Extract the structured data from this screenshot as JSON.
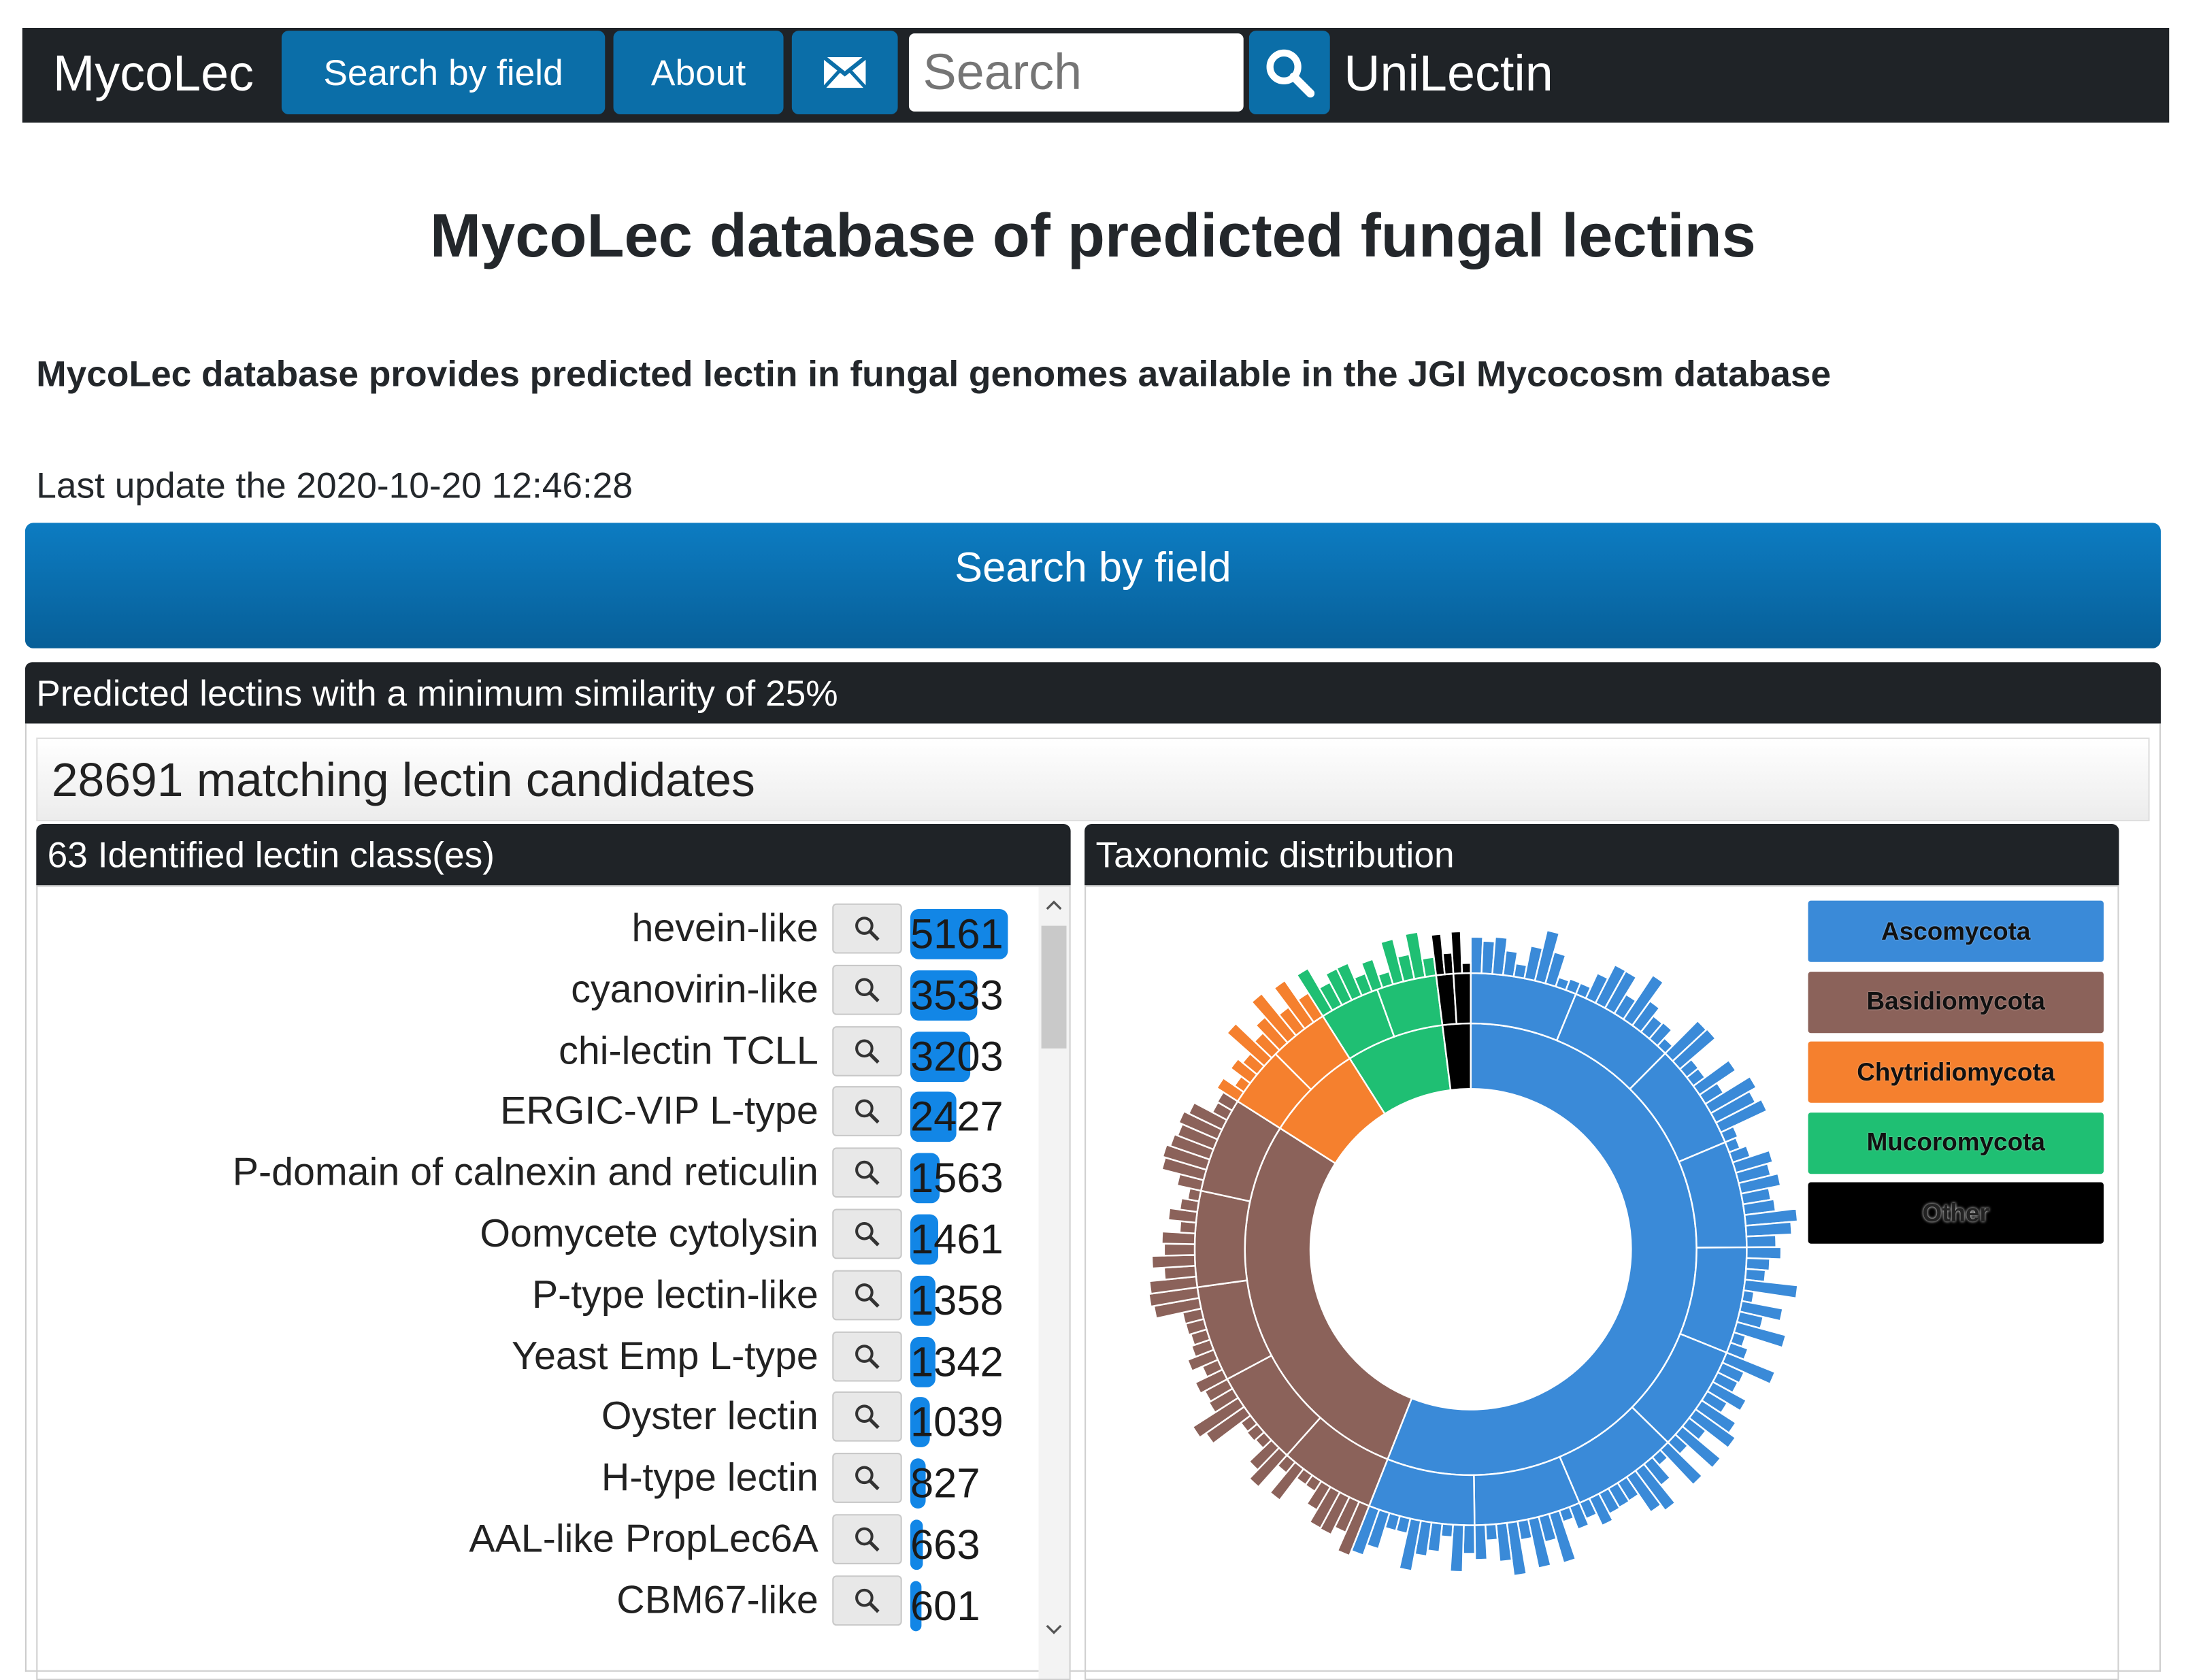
{
  "nav": {
    "brand": "MycoLec",
    "search_by_field": "Search by field",
    "about": "About",
    "search_placeholder": "Search",
    "unilectin": "UniLectin"
  },
  "page": {
    "title": "MycoLec database of predicted fungal lectins",
    "subtitle": "MycoLec database provides predicted lectin in fungal genomes available in the JGI Mycocosm database",
    "last_update": "Last update the 2020-10-20 12:46:28",
    "search_button": "Search by field",
    "panel_title": "Predicted lectins with a minimum similarity of 25%",
    "matching": "28691 matching lectin candidates",
    "classes_header": "63 Identified lectin class(es)",
    "taxonomy_header": "Taxonomic distribution"
  },
  "lectin_classes": [
    {
      "name": "hevein-like",
      "count": "5161",
      "value": 5161
    },
    {
      "name": "cyanovirin-like",
      "count": "3533",
      "value": 3533
    },
    {
      "name": "chi-lectin TCLL",
      "count": "3203",
      "value": 3203
    },
    {
      "name": "ERGIC-VIP L-type",
      "count": "2427",
      "value": 2427
    },
    {
      "name": "P-domain of calnexin and reticulin",
      "count": "1563",
      "value": 1563
    },
    {
      "name": "Oomycete cytolysin",
      "count": "1461",
      "value": 1461
    },
    {
      "name": "P-type lectin-like",
      "count": "1358",
      "value": 1358
    },
    {
      "name": "Yeast Emp L-type",
      "count": "1342",
      "value": 1342
    },
    {
      "name": "Oyster lectin",
      "count": "1039",
      "value": 1039
    },
    {
      "name": "H-type lectin",
      "count": "827",
      "value": 827
    },
    {
      "name": "AAL-like PropLec6A",
      "count": "663",
      "value": 663
    },
    {
      "name": "CBM67-like",
      "count": "601",
      "value": 601
    }
  ],
  "taxonomy_legend": [
    {
      "name": "Ascomycota",
      "color": "#3a8ad8"
    },
    {
      "name": "Basidiomycota",
      "color": "#8b625a"
    },
    {
      "name": "Chytridiomycota",
      "color": "#f5802e"
    },
    {
      "name": "Mucoromycota",
      "color": "#1fbf73"
    },
    {
      "name": "Other",
      "color": "#000000"
    }
  ],
  "chart_data": {
    "type": "sunburst",
    "title": "Taxonomic distribution",
    "categories": [
      "Ascomycota",
      "Basidiomycota",
      "Chytridiomycota",
      "Mucoromycota",
      "Other"
    ],
    "values": [
      56,
      28,
      7,
      7,
      2
    ],
    "unit": "percent (approx.)"
  }
}
